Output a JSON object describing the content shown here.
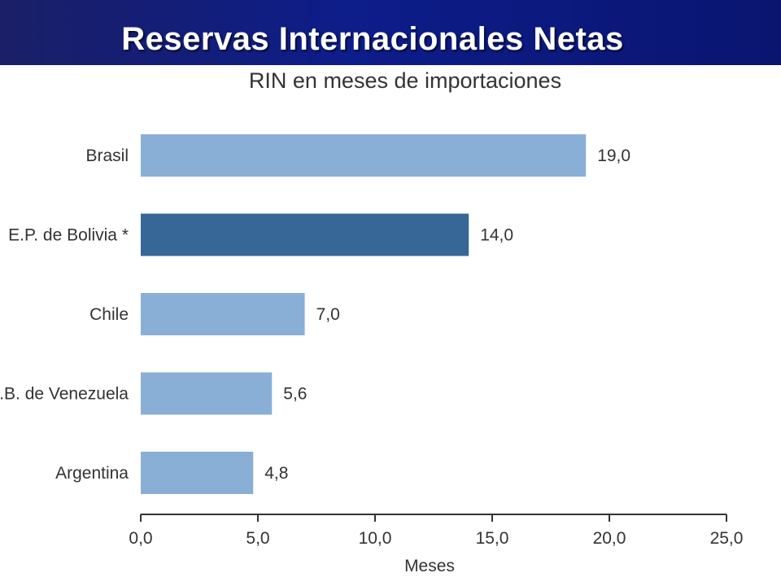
{
  "slide": {
    "title": "Reservas Internacionales Netas"
  },
  "chart_data": {
    "type": "bar",
    "orientation": "horizontal",
    "title": "RIN en meses de importaciones",
    "categories": [
      "Brasil",
      "E.P. de Bolivia *",
      "Chile",
      "R.B. de Venezuela",
      "Argentina"
    ],
    "values": [
      19.0,
      14.0,
      7.0,
      5.6,
      4.8
    ],
    "value_labels": [
      "19,0",
      "14,0",
      "7,0",
      "5,6",
      "4,8"
    ],
    "highlight_index": 1,
    "xlabel": "Meses",
    "ylabel": "",
    "xlim": [
      0,
      25
    ],
    "xticks": [
      0,
      5,
      10,
      15,
      20,
      25
    ],
    "xtick_labels": [
      "0,0",
      "5,0",
      "10,0",
      "15,0",
      "20,0",
      "25,0"
    ],
    "grid": false,
    "colors": {
      "bar": "#8aafd6",
      "highlight": "#366797",
      "axis": "#333333"
    }
  }
}
